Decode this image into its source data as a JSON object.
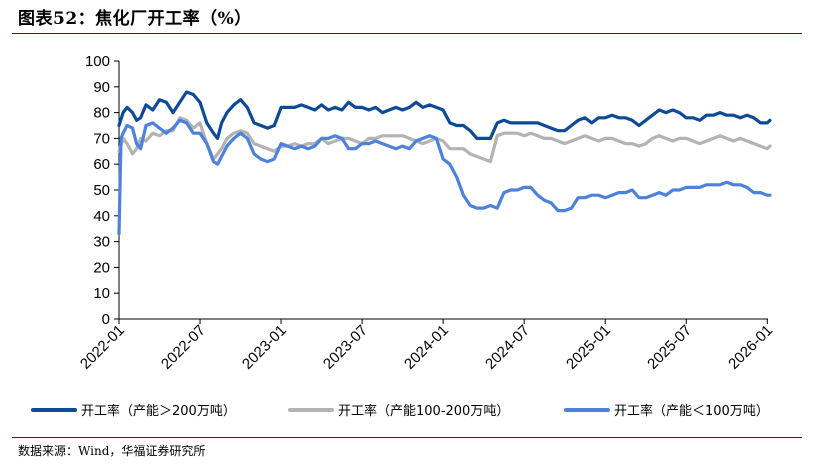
{
  "title": "图表52：焦化厂开工率（%）",
  "source": "数据来源：Wind，华福证券研究所",
  "chart_data": {
    "type": "line",
    "title": "焦化厂开工率（%）",
    "xlabel": "",
    "ylabel": "",
    "ylim": [
      0,
      100
    ],
    "y_ticks": [
      "0",
      "10",
      "20",
      "30",
      "40",
      "50",
      "60",
      "70",
      "80",
      "90",
      "100"
    ],
    "x_range": [
      0,
      48.2
    ],
    "x_ticks": [
      {
        "label": "2022-01",
        "month": 0
      },
      {
        "label": "2022-07",
        "month": 6
      },
      {
        "label": "2023-01",
        "month": 12
      },
      {
        "label": "2023-07",
        "month": 18
      },
      {
        "label": "2024-01",
        "month": 24
      },
      {
        "label": "2024-07",
        "month": 30
      },
      {
        "label": "2025-01",
        "month": 36
      },
      {
        "label": "2025-07",
        "month": 42
      },
      {
        "label": "2026-01",
        "month": 48
      }
    ],
    "x_unit": "months since 2022-01 (weekly data)",
    "series": [
      {
        "name": "开工率（产能＞200万吨）",
        "color": "#0e4a97",
        "x": [
          0,
          0.3,
          0.6,
          1,
          1.3,
          1.6,
          2,
          2.5,
          3,
          3.5,
          4,
          4.5,
          5,
          5.5,
          6,
          6.5,
          7,
          7.3,
          7.6,
          8,
          8.5,
          9,
          9.5,
          10,
          10.5,
          11,
          11.5,
          12,
          12.5,
          13,
          13.5,
          14,
          14.5,
          15,
          15.5,
          16,
          16.5,
          17,
          17.5,
          18,
          18.5,
          19,
          19.5,
          20,
          20.5,
          21,
          21.5,
          22,
          22.5,
          23,
          23.5,
          24,
          24.5,
          25,
          25.5,
          26,
          26.5,
          27,
          27.5,
          28,
          28.5,
          29,
          29.5,
          30,
          30.5,
          31,
          31.5,
          32,
          32.5,
          33,
          33.5,
          34,
          34.5,
          35,
          35.5,
          36,
          36.5,
          37,
          37.5,
          38,
          38.5,
          39,
          39.5,
          40,
          40.5,
          41,
          41.5,
          42,
          42.5,
          43,
          43.5,
          44,
          44.5,
          45,
          45.5,
          46,
          46.5,
          47,
          47.5,
          48,
          48.2
        ],
        "values": [
          75,
          80,
          82,
          80,
          77,
          78,
          83,
          81,
          85,
          84,
          80,
          84,
          88,
          87,
          84,
          76,
          72,
          70,
          76,
          80,
          83,
          85,
          82,
          76,
          75,
          74,
          75,
          82,
          82,
          82,
          83,
          82,
          81,
          83,
          81,
          82,
          81,
          84,
          82,
          82,
          81,
          82,
          80,
          81,
          82,
          81,
          82,
          84,
          82,
          83,
          82,
          81,
          76,
          75,
          75,
          73,
          70,
          70,
          70,
          76,
          77,
          76,
          76,
          76,
          76,
          76,
          75,
          74,
          73,
          73,
          75,
          77,
          78,
          76,
          78,
          78,
          79,
          78,
          78,
          77,
          75,
          77,
          79,
          81,
          80,
          81,
          80,
          78,
          78,
          77,
          79,
          79,
          80,
          79,
          79,
          78,
          79,
          78,
          76,
          76,
          77
        ]
      },
      {
        "name": "开工率（产能100-200万吨）",
        "color": "#b3b3b3",
        "x": [
          0,
          0.3,
          0.6,
          1,
          1.3,
          1.6,
          2,
          2.5,
          3,
          3.5,
          4,
          4.5,
          5,
          5.5,
          6,
          6.5,
          7,
          7.3,
          7.6,
          8,
          8.5,
          9,
          9.5,
          10,
          10.5,
          11,
          11.5,
          12,
          12.5,
          13,
          13.5,
          14,
          14.5,
          15,
          15.5,
          16,
          16.5,
          17,
          17.5,
          18,
          18.5,
          19,
          19.5,
          20,
          20.5,
          21,
          21.5,
          22,
          22.5,
          23,
          23.5,
          24,
          24.5,
          25,
          25.5,
          26,
          26.5,
          27,
          27.5,
          28,
          28.5,
          29,
          29.5,
          30,
          30.5,
          31,
          31.5,
          32,
          32.5,
          33,
          33.5,
          34,
          34.5,
          35,
          35.5,
          36,
          36.5,
          37,
          37.5,
          38,
          38.5,
          39,
          39.5,
          40,
          40.5,
          41,
          41.5,
          42,
          42.5,
          43,
          43.5,
          44,
          44.5,
          45,
          45.5,
          46,
          46.5,
          47,
          47.5,
          48,
          48.2
        ],
        "values": [
          65,
          70,
          68,
          64,
          66,
          70,
          69,
          72,
          71,
          73,
          73,
          78,
          77,
          74,
          76,
          68,
          62,
          64,
          66,
          70,
          72,
          73,
          72,
          68,
          67,
          66,
          65,
          67,
          67,
          68,
          67,
          68,
          68,
          70,
          68,
          69,
          70,
          70,
          69,
          68,
          70,
          70,
          71,
          71,
          71,
          71,
          70,
          69,
          68,
          69,
          70,
          69,
          66,
          66,
          66,
          64,
          63,
          62,
          61,
          71,
          72,
          72,
          72,
          71,
          72,
          71,
          70,
          70,
          69,
          68,
          69,
          70,
          71,
          70,
          69,
          70,
          70,
          69,
          68,
          68,
          67,
          68,
          70,
          71,
          70,
          69,
          70,
          70,
          69,
          68,
          69,
          70,
          71,
          70,
          69,
          70,
          69,
          68,
          67,
          66,
          67
        ]
      },
      {
        "name": "开工率（产能＜100万吨）",
        "color": "#4d82dc",
        "x": [
          0,
          0.15,
          0.3,
          0.6,
          1,
          1.3,
          1.6,
          2,
          2.5,
          3,
          3.5,
          4,
          4.5,
          5,
          5.5,
          6,
          6.5,
          7,
          7.3,
          7.6,
          8,
          8.5,
          9,
          9.5,
          10,
          10.5,
          11,
          11.5,
          12,
          12.5,
          13,
          13.5,
          14,
          14.5,
          15,
          15.5,
          16,
          16.5,
          17,
          17.5,
          18,
          18.5,
          19,
          19.5,
          20,
          20.5,
          21,
          21.5,
          22,
          22.5,
          23,
          23.5,
          24,
          24.5,
          25,
          25.5,
          26,
          26.5,
          27,
          27.5,
          28,
          28.5,
          29,
          29.5,
          30,
          30.5,
          31,
          31.5,
          32,
          32.5,
          33,
          33.5,
          34,
          34.5,
          35,
          35.5,
          36,
          36.5,
          37,
          37.5,
          38,
          38.5,
          39,
          39.5,
          40,
          40.5,
          41,
          41.5,
          42,
          42.5,
          43,
          43.5,
          44,
          44.5,
          45,
          45.5,
          46,
          46.5,
          47,
          47.5,
          48,
          48.2
        ],
        "values": [
          33,
          70,
          72,
          75,
          74,
          68,
          66,
          75,
          76,
          74,
          72,
          74,
          77,
          76,
          72,
          72,
          68,
          61,
          60,
          63,
          67,
          70,
          72,
          70,
          64,
          62,
          61,
          62,
          68,
          67,
          66,
          67,
          66,
          67,
          70,
          70,
          71,
          70,
          66,
          66,
          68,
          68,
          69,
          68,
          67,
          66,
          67,
          66,
          69,
          70,
          71,
          70,
          62,
          60,
          55,
          48,
          44,
          43,
          43,
          44,
          43,
          49,
          50,
          50,
          51,
          51,
          48,
          46,
          45,
          42,
          42,
          43,
          47,
          47,
          48,
          48,
          47,
          48,
          49,
          49,
          50,
          47,
          47,
          48,
          49,
          48,
          50,
          50,
          51,
          51,
          51,
          52,
          52,
          52,
          53,
          52,
          52,
          51,
          49,
          49,
          48,
          48
        ]
      }
    ],
    "legend": {
      "position": "bottom"
    }
  }
}
